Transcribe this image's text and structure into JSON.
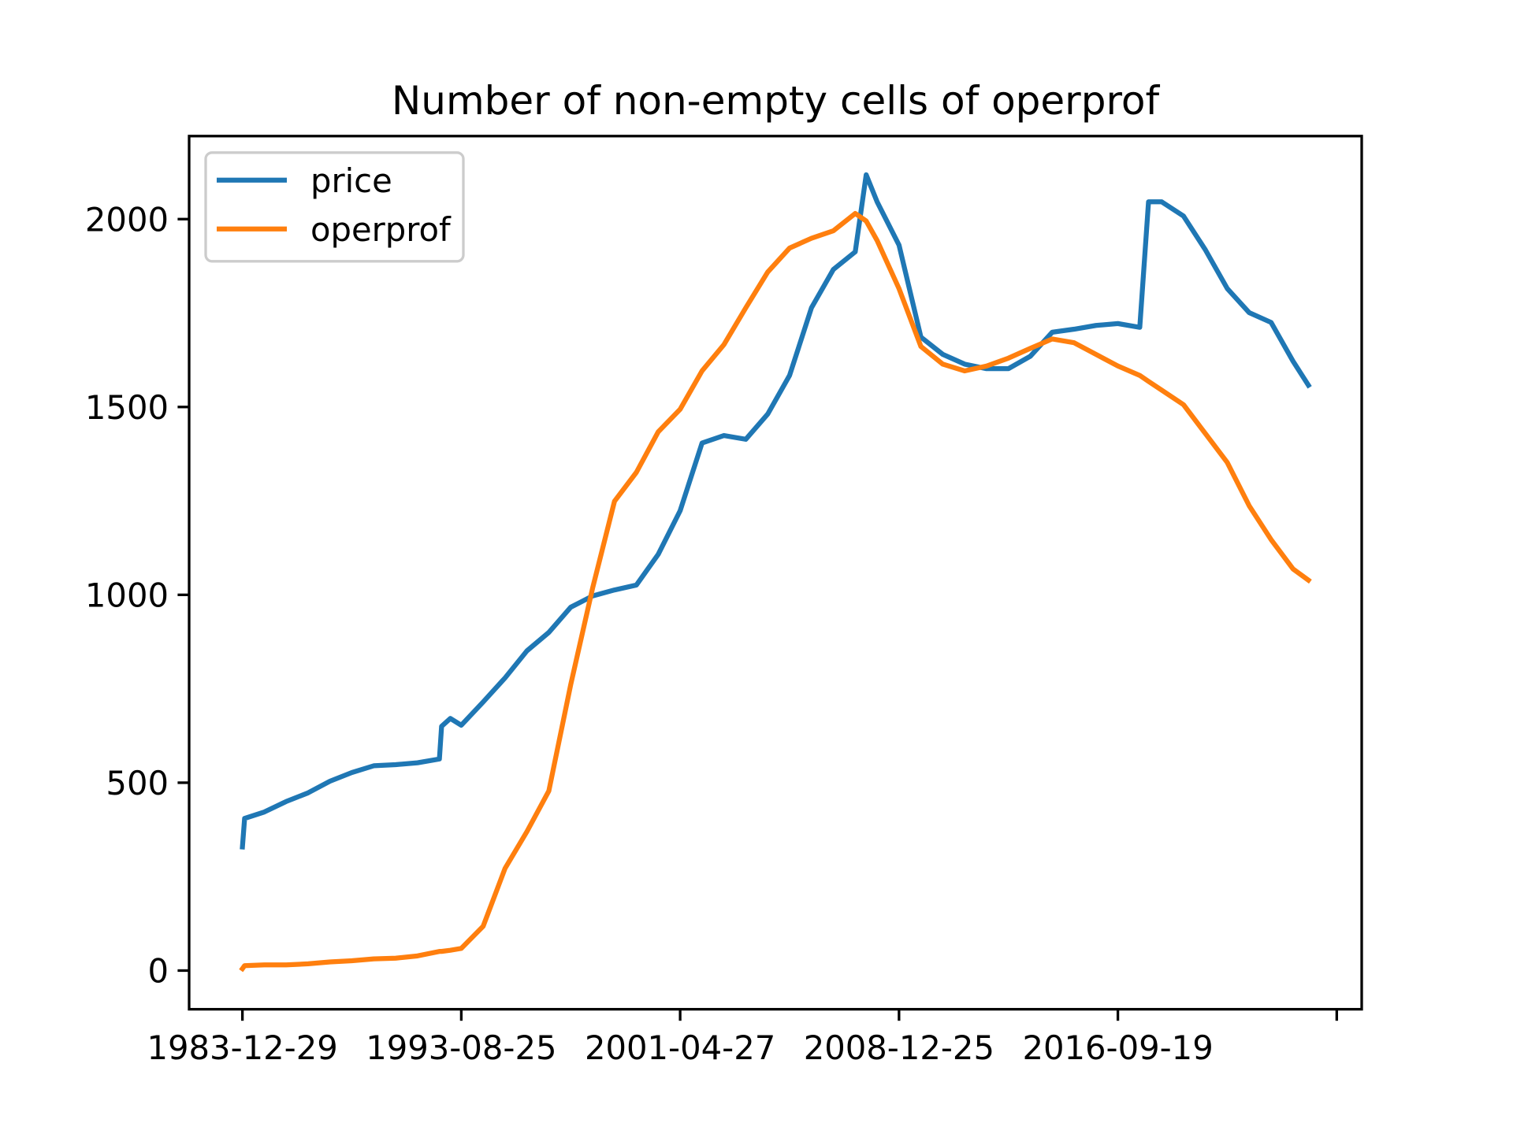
{
  "chart_data": {
    "type": "line",
    "title": "Number of non-empty cells of operprof",
    "x": [
      0,
      20,
      200,
      400,
      600,
      800,
      1000,
      1200,
      1400,
      1600,
      1800,
      1820,
      1900,
      2000,
      2200,
      2400,
      2600,
      2800,
      3000,
      3200,
      3400,
      3600,
      3800,
      4000,
      4200,
      4400,
      4600,
      4800,
      5000,
      5200,
      5400,
      5600,
      5700,
      5800,
      6000,
      6200,
      6400,
      6600,
      6800,
      7000,
      7200,
      7400,
      7600,
      7800,
      8000,
      8200,
      8280,
      8400,
      8600,
      8800,
      9000,
      9200,
      9400,
      9600,
      9741
    ],
    "series": [
      {
        "name": "price",
        "color": "#1f77b4",
        "values": [
          329,
          405,
          422,
          450,
          473,
          504,
          527,
          545,
          548,
          553,
          563,
          650,
          671,
          653,
          715,
          779,
          851,
          900,
          967,
          997,
          1013,
          1026,
          1108,
          1224,
          1404,
          1424,
          1414,
          1481,
          1584,
          1764,
          1866,
          1913,
          2118,
          2046,
          1931,
          1686,
          1640,
          1614,
          1602,
          1602,
          1635,
          1699,
          1707,
          1717,
          1722,
          1712,
          2046,
          2046,
          2008,
          1918,
          1815,
          1751,
          1725,
          1622,
          1558
        ]
      },
      {
        "name": "operprof",
        "color": "#ff7f0e",
        "values": [
          5,
          13,
          15,
          15,
          18,
          23,
          26,
          31,
          33,
          39,
          51,
          51,
          54,
          59,
          118,
          272,
          370,
          478,
          761,
          1018,
          1249,
          1326,
          1434,
          1494,
          1596,
          1666,
          1764,
          1859,
          1923,
          1949,
          1969,
          2015,
          1995,
          1943,
          1815,
          1661,
          1614,
          1596,
          1609,
          1630,
          1656,
          1681,
          1671,
          1640,
          1609,
          1584,
          1568,
          1545,
          1506,
          1429,
          1352,
          1237,
          1147,
          1069,
          1039
        ]
      }
    ],
    "xlim": [
      -487,
      10228
    ],
    "xticks": [
      {
        "value": 0,
        "label": "1983-12-29"
      },
      {
        "value": 2000,
        "label": "1993-08-25"
      },
      {
        "value": 4000,
        "label": "2001-04-27"
      },
      {
        "value": 6000,
        "label": "2008-12-25"
      },
      {
        "value": 8000,
        "label": "2016-09-19"
      },
      {
        "value": 10000,
        "label": null
      }
    ],
    "ylim": [
      -103,
      2221
    ],
    "yticks": [
      0,
      500,
      1000,
      1500,
      2000
    ],
    "legend": "upper left"
  }
}
